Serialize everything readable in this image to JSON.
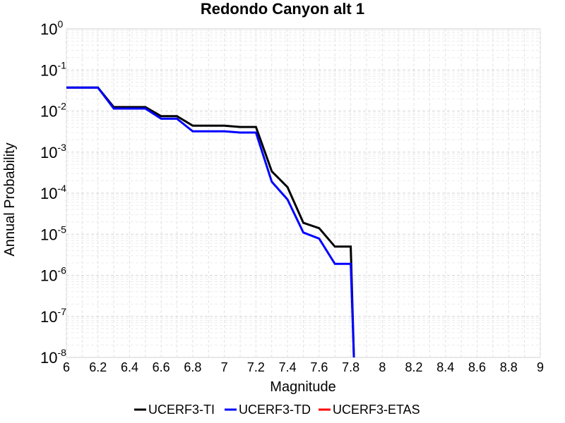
{
  "chart_data": {
    "type": "line",
    "title": "Redondo Canyon alt 1",
    "xlabel": "Magnitude",
    "ylabel": "Annual Probability",
    "xlim": [
      6,
      9
    ],
    "ylim": [
      1e-08,
      1
    ],
    "yscale": "log",
    "grid": true,
    "legend_position": "bottom-center",
    "x_ticks": [
      "6",
      "6.2",
      "6.4",
      "6.6",
      "6.8",
      "7",
      "7.2",
      "7.4",
      "7.6",
      "7.8",
      "8",
      "8.2",
      "8.4",
      "8.6",
      "8.8",
      "9"
    ],
    "y_ticks": [
      {
        "base": "10",
        "exp": "-8",
        "value": 1e-08
      },
      {
        "base": "10",
        "exp": "-7",
        "value": 1e-07
      },
      {
        "base": "10",
        "exp": "-6",
        "value": 1e-06
      },
      {
        "base": "10",
        "exp": "-5",
        "value": 1e-05
      },
      {
        "base": "10",
        "exp": "-4",
        "value": 0.0001
      },
      {
        "base": "10",
        "exp": "-3",
        "value": 0.001
      },
      {
        "base": "10",
        "exp": "-2",
        "value": 0.01
      },
      {
        "base": "10",
        "exp": "-1",
        "value": 0.1
      },
      {
        "base": "10",
        "exp": "0",
        "value": 1
      }
    ],
    "series": [
      {
        "name": "UCERF3-TI",
        "color": "#000000",
        "points": [
          [
            6.0,
            0.0372
          ],
          [
            6.2,
            0.0372
          ],
          [
            6.3,
            0.0125
          ],
          [
            6.5,
            0.0125
          ],
          [
            6.6,
            0.0075
          ],
          [
            6.7,
            0.0075
          ],
          [
            6.8,
            0.0044
          ],
          [
            7.0,
            0.0044
          ],
          [
            7.1,
            0.0041
          ],
          [
            7.2,
            0.0041
          ],
          [
            7.3,
            0.00034
          ],
          [
            7.4,
            0.00014
          ],
          [
            7.5,
            1.9e-05
          ],
          [
            7.6,
            1.4e-05
          ],
          [
            7.7,
            5e-06
          ],
          [
            7.8,
            5e-06
          ],
          [
            7.82,
            1e-08
          ]
        ]
      },
      {
        "name": "UCERF3-TD",
        "color": "#0000ff",
        "points": [
          [
            6.0,
            0.0372
          ],
          [
            6.2,
            0.0372
          ],
          [
            6.3,
            0.0115
          ],
          [
            6.5,
            0.0115
          ],
          [
            6.6,
            0.0065
          ],
          [
            6.7,
            0.0065
          ],
          [
            6.8,
            0.0032
          ],
          [
            7.0,
            0.0032
          ],
          [
            7.1,
            0.003
          ],
          [
            7.2,
            0.003
          ],
          [
            7.3,
            0.00019
          ],
          [
            7.4,
            7e-05
          ],
          [
            7.5,
            1.1e-05
          ],
          [
            7.6,
            7.8e-06
          ],
          [
            7.7,
            1.9e-06
          ],
          [
            7.8,
            1.9e-06
          ],
          [
            7.82,
            1e-08
          ]
        ]
      },
      {
        "name": "UCERF3-ETAS",
        "color": "#ff0000",
        "points": []
      }
    ]
  }
}
